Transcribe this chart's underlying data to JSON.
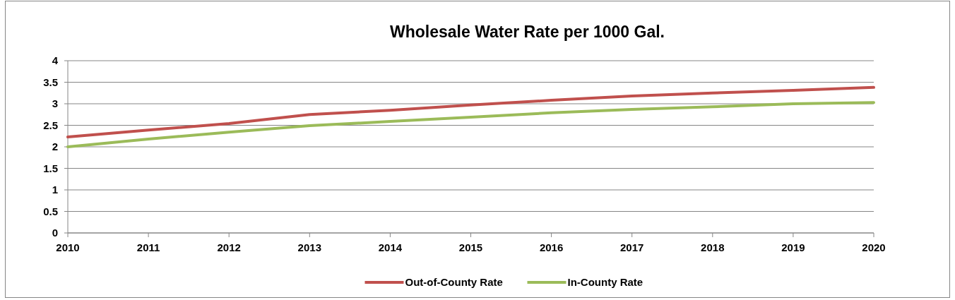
{
  "chart_data": {
    "type": "line",
    "title": "Wholesale Water Rate per 1000 Gal.",
    "categories": [
      "2010",
      "2011",
      "2012",
      "2013",
      "2014",
      "2015",
      "2016",
      "2017",
      "2018",
      "2019",
      "2020"
    ],
    "series": [
      {
        "name": "Out-of-County Rate",
        "color": "#c0504d",
        "values": [
          2.23,
          2.39,
          2.54,
          2.75,
          2.85,
          2.97,
          3.08,
          3.18,
          3.25,
          3.31,
          3.38
        ]
      },
      {
        "name": "In-County Rate",
        "color": "#9bbb59",
        "values": [
          2.0,
          2.18,
          2.34,
          2.49,
          2.59,
          2.69,
          2.79,
          2.87,
          2.93,
          3.0,
          3.03
        ]
      }
    ],
    "ylim": [
      0,
      4
    ],
    "yticks": [
      0,
      0.5,
      1,
      1.5,
      2,
      2.5,
      3,
      3.5,
      4
    ],
    "grid": "y",
    "legend": "bottom",
    "marker": "none",
    "line_style": "solid"
  }
}
